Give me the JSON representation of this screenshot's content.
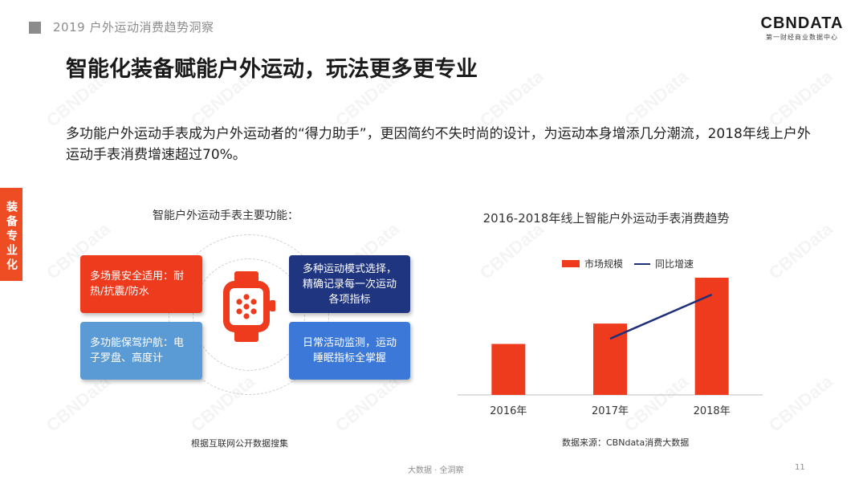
{
  "header": {
    "report_title": "2019 户外运动消费趋势洞察"
  },
  "logo": {
    "main": "CBNDATA",
    "sub": "第一财经商业数据中心"
  },
  "page_title": "智能化装备赋能户外运动，玩法更多更专业",
  "description": "多功能户外运动手表成为户外运动者的“得力助手”，更因简约不失时尚的设计，为运动本身增添几分潮流，2018年线上户外运动手表消费增速超过70%。",
  "side_tab": "装备专业化",
  "features": {
    "title": "智能户外运动手表主要功能：",
    "items": [
      {
        "text": "多场景安全适用：耐热/抗震/防水",
        "color": "#ee3a1d"
      },
      {
        "text": "多功能保驾护航：电子罗盘、高度计",
        "color": "#5b9bd5"
      },
      {
        "text": "多种运动模式选择，精确记录每一次运动各项指标",
        "color": "#1f3580"
      },
      {
        "text": "日常活动监测，运动睡眠指标全掌握",
        "color": "#3c78d8"
      }
    ],
    "center_icon": "smartwatch-icon",
    "source": "根据互联网公开数据搜集"
  },
  "chart_data": {
    "type": "bar",
    "title": "2016-2018年线上智能户外运动手表消费趋势",
    "categories": [
      "2016年",
      "2017年",
      "2018年"
    ],
    "series": [
      {
        "name": "市场规模",
        "type": "bar",
        "values": [
          1.0,
          1.4,
          2.3
        ],
        "color": "#ee3a1d"
      },
      {
        "name": "同比增速",
        "type": "line",
        "values": [
          null,
          1.0,
          2.0
        ],
        "color": "#1f2f7a"
      }
    ],
    "legend_position": "top",
    "grid": false,
    "source": "数据来源：CBNdata消费大数据"
  },
  "footer": {
    "text": "大数据 · 全洞察",
    "page": "11"
  },
  "watermark": "CBNData"
}
